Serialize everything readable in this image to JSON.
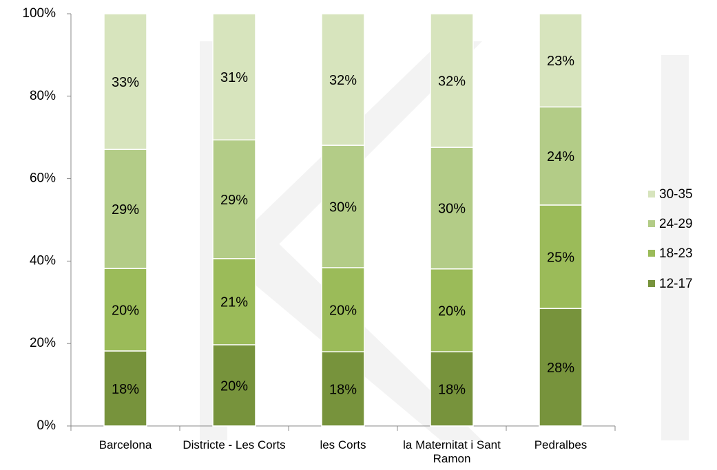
{
  "chart_data": {
    "type": "stacked_bar",
    "categories": [
      "Barcelona",
      "Districte - Les Corts",
      "les Corts",
      "la Maternitat i Sant Ramon",
      "Pedralbes"
    ],
    "series": [
      {
        "name": "12-17",
        "color": "#77933c",
        "values": [
          18.2,
          19.7,
          18.0,
          18.0,
          28.5
        ],
        "value_labels": [
          "18%",
          "20%",
          "18%",
          "18%",
          "28%"
        ]
      },
      {
        "name": "18-23",
        "color": "#9bbb59",
        "values": [
          20.0,
          20.9,
          20.4,
          20.1,
          25.1
        ],
        "value_labels": [
          "20%",
          "21%",
          "20%",
          "20%",
          "25%"
        ]
      },
      {
        "name": "24-29",
        "color": "#b3cc87",
        "values": [
          28.9,
          28.8,
          29.7,
          29.5,
          23.8
        ],
        "value_labels": [
          "29%",
          "29%",
          "30%",
          "30%",
          "24%"
        ]
      },
      {
        "name": "30-35",
        "color": "#d7e4bd",
        "values": [
          32.9,
          30.6,
          31.9,
          32.4,
          22.6
        ],
        "value_labels": [
          "33%",
          "31%",
          "32%",
          "32%",
          "23%"
        ]
      }
    ],
    "ylim": [
      0,
      100
    ],
    "yticks": [
      {
        "value": 0,
        "label": "0%"
      },
      {
        "value": 20,
        "label": "20%"
      },
      {
        "value": 40,
        "label": "40%"
      },
      {
        "value": 60,
        "label": "60%"
      },
      {
        "value": 80,
        "label": "80%"
      },
      {
        "value": 100,
        "label": "100%"
      }
    ],
    "legend": "right"
  }
}
